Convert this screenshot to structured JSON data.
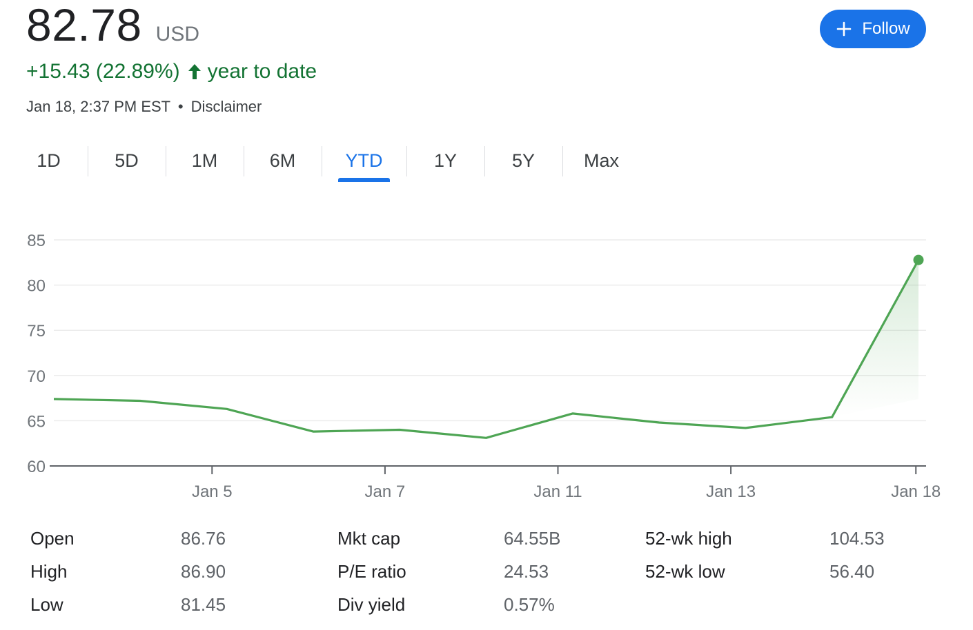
{
  "quote": {
    "price": "82.78",
    "currency": "USD",
    "change": "+15.43 (22.89%)",
    "change_period": "year to date",
    "timestamp": "Jan 18, 2:37 PM EST",
    "separator": "•",
    "disclaimer": "Disclaimer"
  },
  "follow_button": {
    "label": "Follow",
    "icon": "plus-icon"
  },
  "tabs": [
    {
      "label": "1D"
    },
    {
      "label": "5D"
    },
    {
      "label": "1M"
    },
    {
      "label": "6M"
    },
    {
      "label": "YTD",
      "active": true
    },
    {
      "label": "1Y"
    },
    {
      "label": "5Y"
    },
    {
      "label": "Max"
    }
  ],
  "colors": {
    "accent": "#1a73e8",
    "positive": "#137333",
    "line": "#4ea554"
  },
  "chart_data": {
    "type": "line",
    "ylim": [
      60,
      85
    ],
    "yticks": [
      60,
      65,
      70,
      75,
      80,
      85
    ],
    "x_tick_labels": [
      "Jan 5",
      "Jan 7",
      "Jan 11",
      "Jan 13",
      "Jan 18"
    ],
    "series": [
      {
        "values": [
          67.4,
          67.2,
          66.3,
          63.8,
          64.0,
          63.1,
          65.8,
          64.8,
          64.2,
          65.4,
          82.78
        ]
      }
    ],
    "tick_after_point": [
      1.83,
      3.83,
      5.83,
      7.83,
      9.97
    ],
    "grid": true,
    "end_marker": true
  },
  "stats": [
    [
      {
        "label": "Open",
        "value": "86.76"
      },
      {
        "label": "High",
        "value": "86.90"
      },
      {
        "label": "Low",
        "value": "81.45"
      }
    ],
    [
      {
        "label": "Mkt cap",
        "value": "64.55B"
      },
      {
        "label": "P/E ratio",
        "value": "24.53"
      },
      {
        "label": "Div yield",
        "value": "0.57%"
      }
    ],
    [
      {
        "label": "52-wk high",
        "value": "104.53"
      },
      {
        "label": "52-wk low",
        "value": "56.40"
      }
    ]
  ]
}
